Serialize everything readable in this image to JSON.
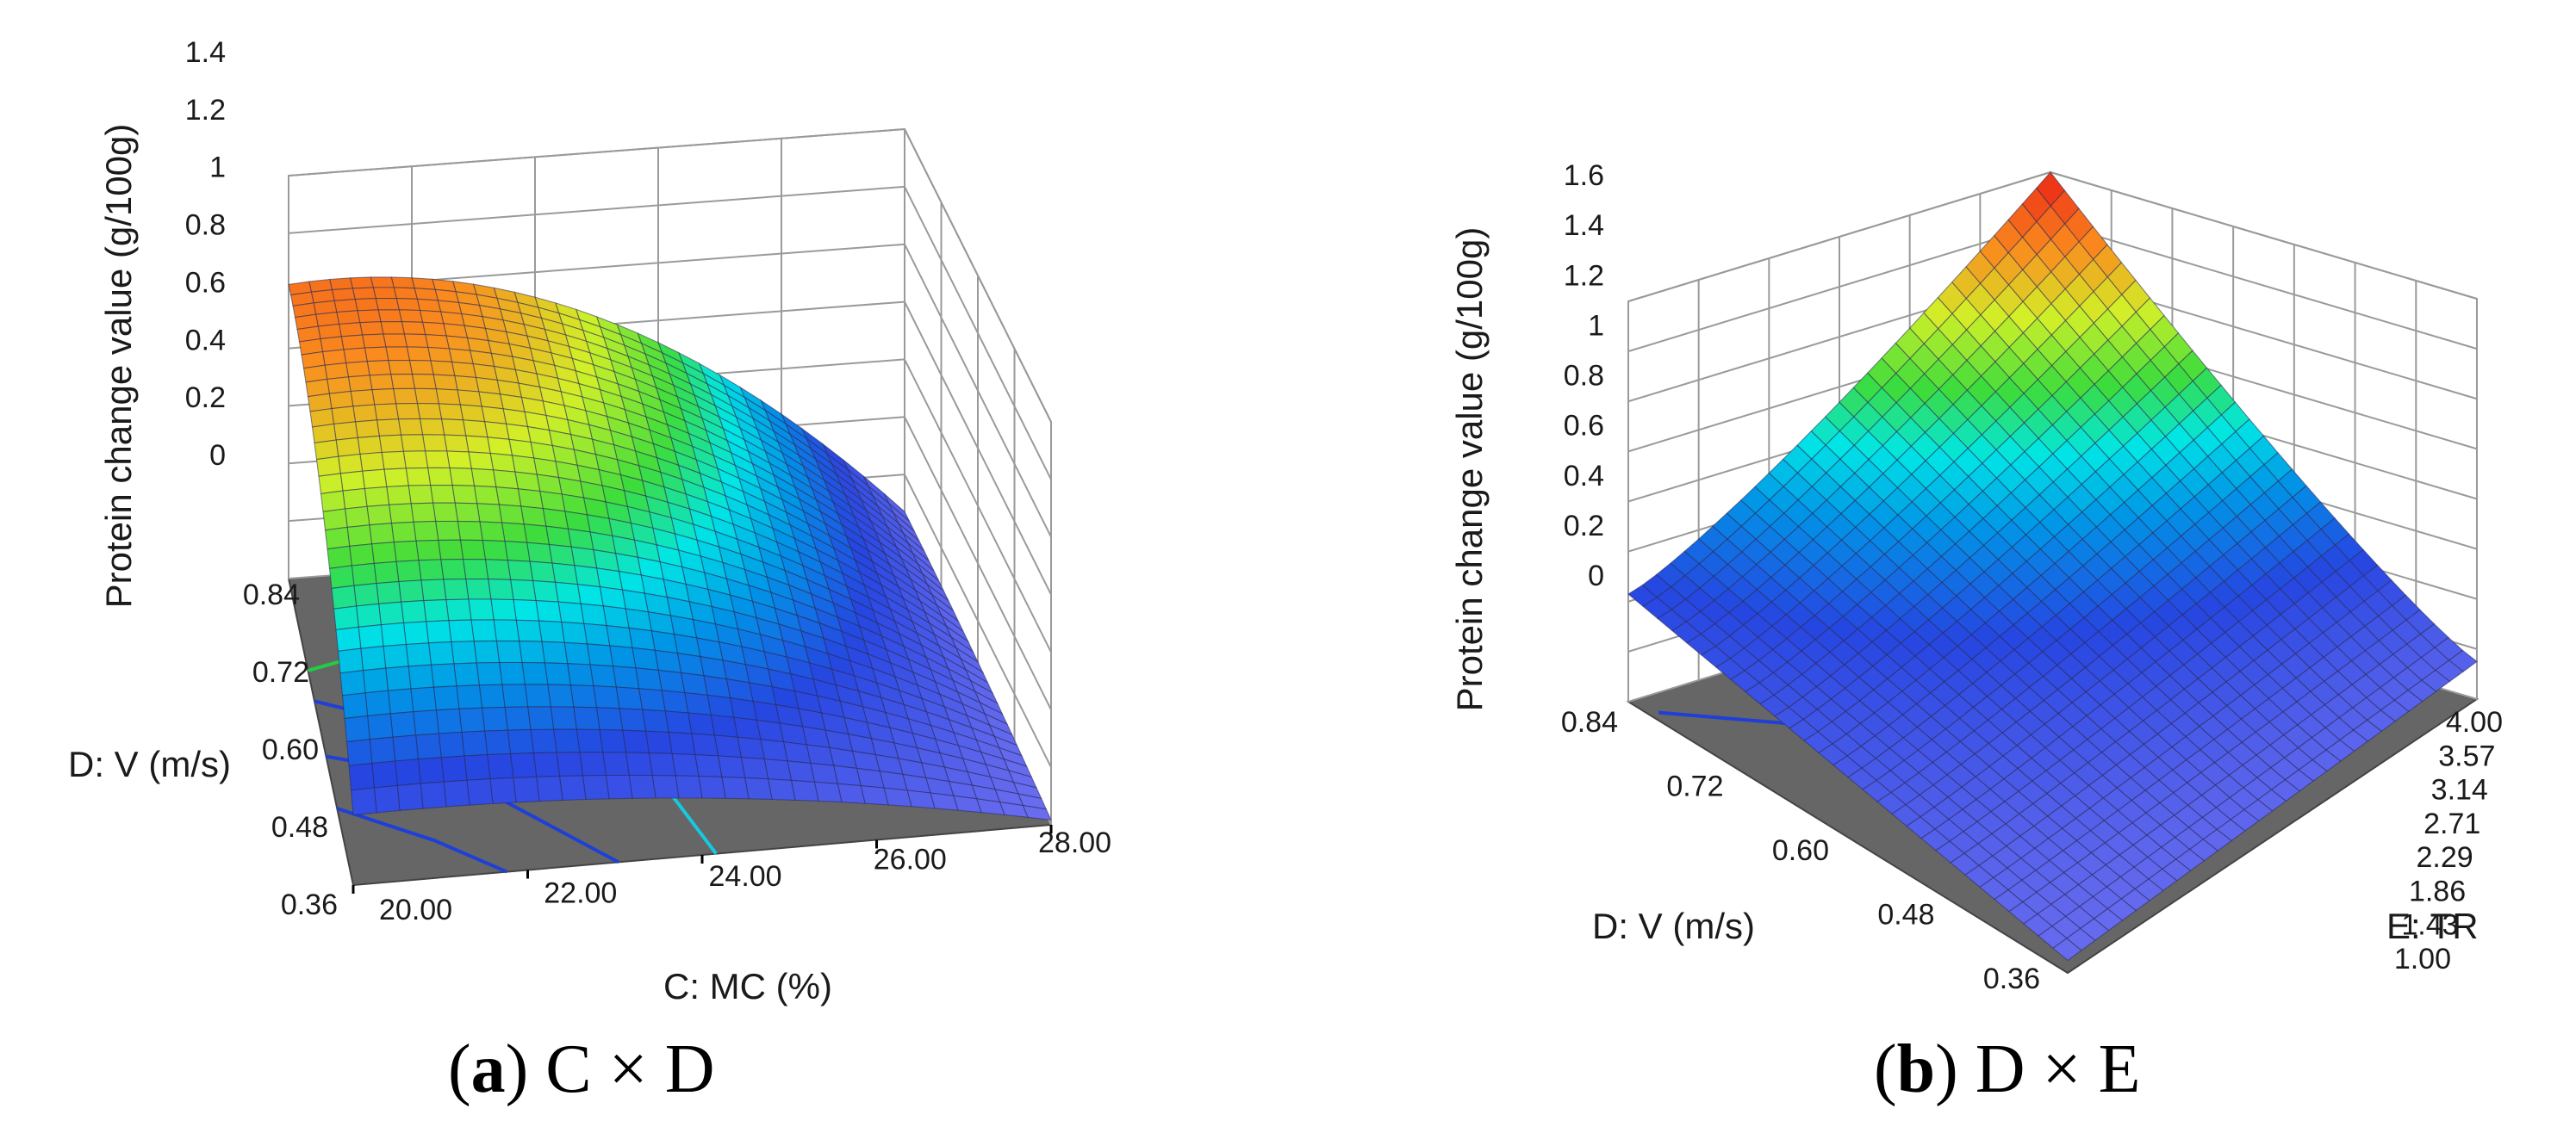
{
  "chart_data": [
    {
      "type": "surface3d",
      "panel_letter": "a",
      "caption": "C × D",
      "zlabel": "Protein change value (g/100g)",
      "xlabel": "C: MC (%)",
      "ylabel": "D: V (m/s)",
      "x_ticks": [
        "20.00",
        "22.00",
        "24.00",
        "26.00",
        "28.00"
      ],
      "y_ticks": [
        "0.36",
        "0.48",
        "0.60",
        "0.72",
        "0.84"
      ],
      "z_ticks": [
        "0",
        "0.2",
        "0.4",
        "0.6",
        "0.8",
        "1",
        "1.2",
        "1.4"
      ],
      "xlim": [
        20,
        28
      ],
      "ylim": [
        0.36,
        0.84
      ],
      "zlim": [
        0,
        1.4
      ],
      "surface": {
        "model": "protein = 0.04 + 0.96*(1-((MC-20)/8)^2*0.95) * (0.3 + 0.95*(1-((V-0.84)/0.48)^2)) - trimmed",
        "corner_values": {
          "MC20_V0.36": 0.0,
          "MC20_V0.84": 0.93,
          "MC28_V0.84": 0.0,
          "MC28_V0.36": 0.0
        },
        "peak": {
          "MC": 21.0,
          "V": 0.84,
          "protein": 1.0
        }
      }
    },
    {
      "type": "surface3d",
      "panel_letter": "b",
      "caption": "D × E",
      "zlabel": "Protein change value (g/100g)",
      "xlabel": "E: TR",
      "ylabel": "D: V (m/s)",
      "x_ticks": [
        "1.00",
        "1.43",
        "1.86",
        "2.29",
        "2.71",
        "3.14",
        "3.57",
        "4.00"
      ],
      "y_ticks": [
        "0.36",
        "0.48",
        "0.60",
        "0.72",
        "0.84"
      ],
      "z_ticks": [
        "0",
        "0.2",
        "0.4",
        "0.6",
        "0.8",
        "1",
        "1.2",
        "1.4",
        "1.6"
      ],
      "xlim": [
        1,
        4
      ],
      "ylim": [
        0.36,
        0.84
      ],
      "zlim": [
        0,
        1.6
      ],
      "surface": {
        "corner_values": {
          "V0.84_TR4.00": 0.45,
          "V0.84_TR1.00": 1.58,
          "V0.36_TR1.00": 0.0,
          "V0.36_TR4.00": 0.0
        },
        "peak": {
          "V": 0.84,
          "TR": 1.0,
          "protein": 1.58
        }
      }
    }
  ]
}
